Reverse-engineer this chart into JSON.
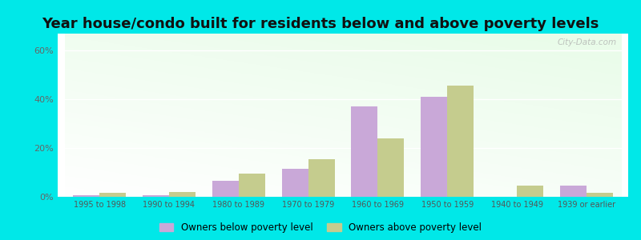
{
  "title": "Year house/condo built for residents below and above poverty levels",
  "categories": [
    "1995 to 1998",
    "1990 to 1994",
    "1980 to 1989",
    "1970 to 1979",
    "1960 to 1969",
    "1950 to 1959",
    "1940 to 1949",
    "1939 or earlier"
  ],
  "below_poverty": [
    0.5,
    0.5,
    6.5,
    11.5,
    37.0,
    41.0,
    0.0,
    4.5
  ],
  "above_poverty": [
    1.5,
    2.0,
    9.5,
    15.5,
    24.0,
    45.5,
    4.5,
    1.5
  ],
  "below_color": "#c9a8d8",
  "above_color": "#c5cc8e",
  "bar_width": 0.38,
  "ylim": [
    0,
    67
  ],
  "yticks": [
    0,
    20,
    40,
    60
  ],
  "ytick_labels": [
    "0%",
    "20%",
    "40%",
    "60%"
  ],
  "background_outer": "#00e8e8",
  "legend_below_label": "Owners below poverty level",
  "legend_above_label": "Owners above poverty level",
  "title_fontsize": 13,
  "watermark": "City-Data.com"
}
